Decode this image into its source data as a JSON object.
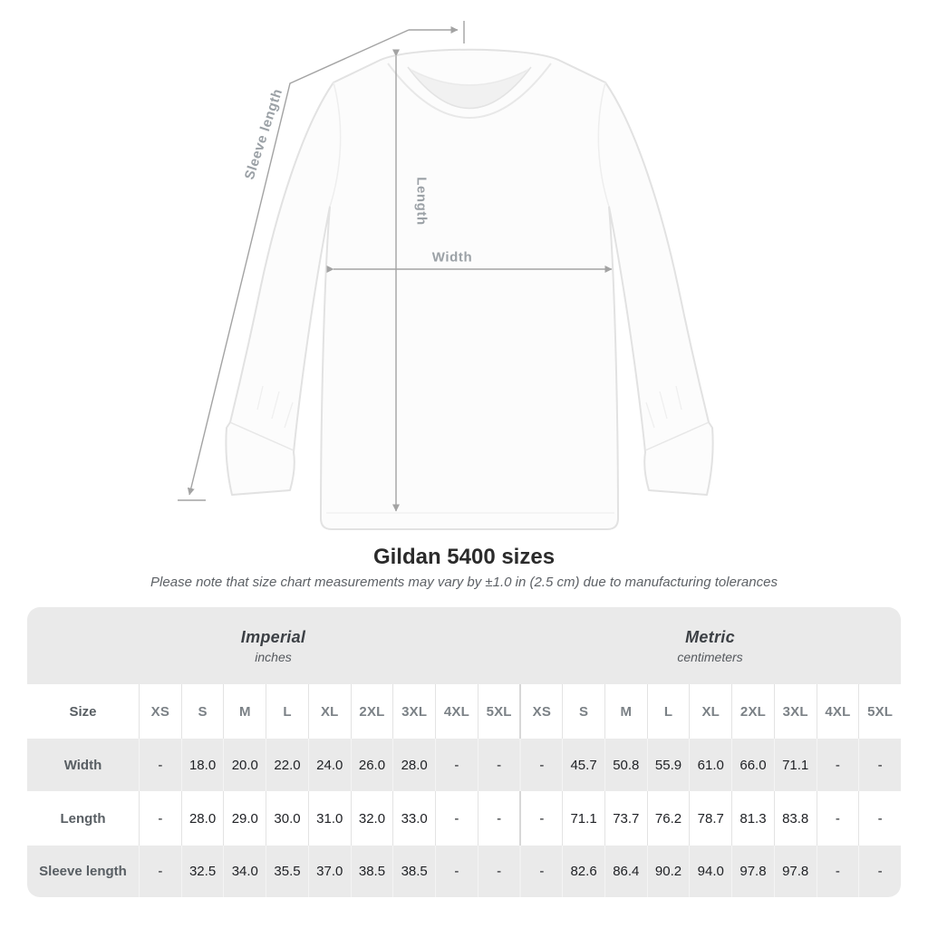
{
  "diagram": {
    "labels": {
      "sleeve_length": "Sleeve length",
      "length": "Length",
      "width": "Width"
    },
    "annotation_color": "#a3a3a3",
    "label_color": "#9ba1a6"
  },
  "heading": {
    "title": "Gildan 5400 sizes",
    "note": "Please note that size chart measurements may vary by ±1.0 in (2.5 cm) due to manufacturing tolerances"
  },
  "size_chart": {
    "unit_groups": [
      {
        "label": "Imperial",
        "sublabel": "inches"
      },
      {
        "label": "Metric",
        "sublabel": "centimeters"
      }
    ],
    "size_header_label": "Size",
    "sizes": [
      "XS",
      "S",
      "M",
      "L",
      "XL",
      "2XL",
      "3XL",
      "4XL",
      "5XL"
    ],
    "rows": [
      {
        "label": "Width",
        "imperial": [
          "-",
          "18.0",
          "20.0",
          "22.0",
          "24.0",
          "26.0",
          "28.0",
          "-",
          "-"
        ],
        "metric": [
          "-",
          "45.7",
          "50.8",
          "55.9",
          "61.0",
          "66.0",
          "71.1",
          "-",
          "-"
        ]
      },
      {
        "label": "Length",
        "imperial": [
          "-",
          "28.0",
          "29.0",
          "30.0",
          "31.0",
          "32.0",
          "33.0",
          "-",
          "-"
        ],
        "metric": [
          "-",
          "71.1",
          "73.7",
          "76.2",
          "78.7",
          "81.3",
          "83.8",
          "-",
          "-"
        ]
      },
      {
        "label": "Sleeve length",
        "imperial": [
          "-",
          "32.5",
          "34.0",
          "35.5",
          "37.0",
          "38.5",
          "38.5",
          "-",
          "-"
        ],
        "metric": [
          "-",
          "82.6",
          "86.4",
          "90.2",
          "94.0",
          "97.8",
          "97.8",
          "-",
          "-"
        ]
      }
    ],
    "colors": {
      "band_background": "#eaeaea",
      "alt_row_background": "#eaeaea",
      "header_text": "#7b8186",
      "row_label_text": "#585e63",
      "value_text": "#202226"
    }
  }
}
